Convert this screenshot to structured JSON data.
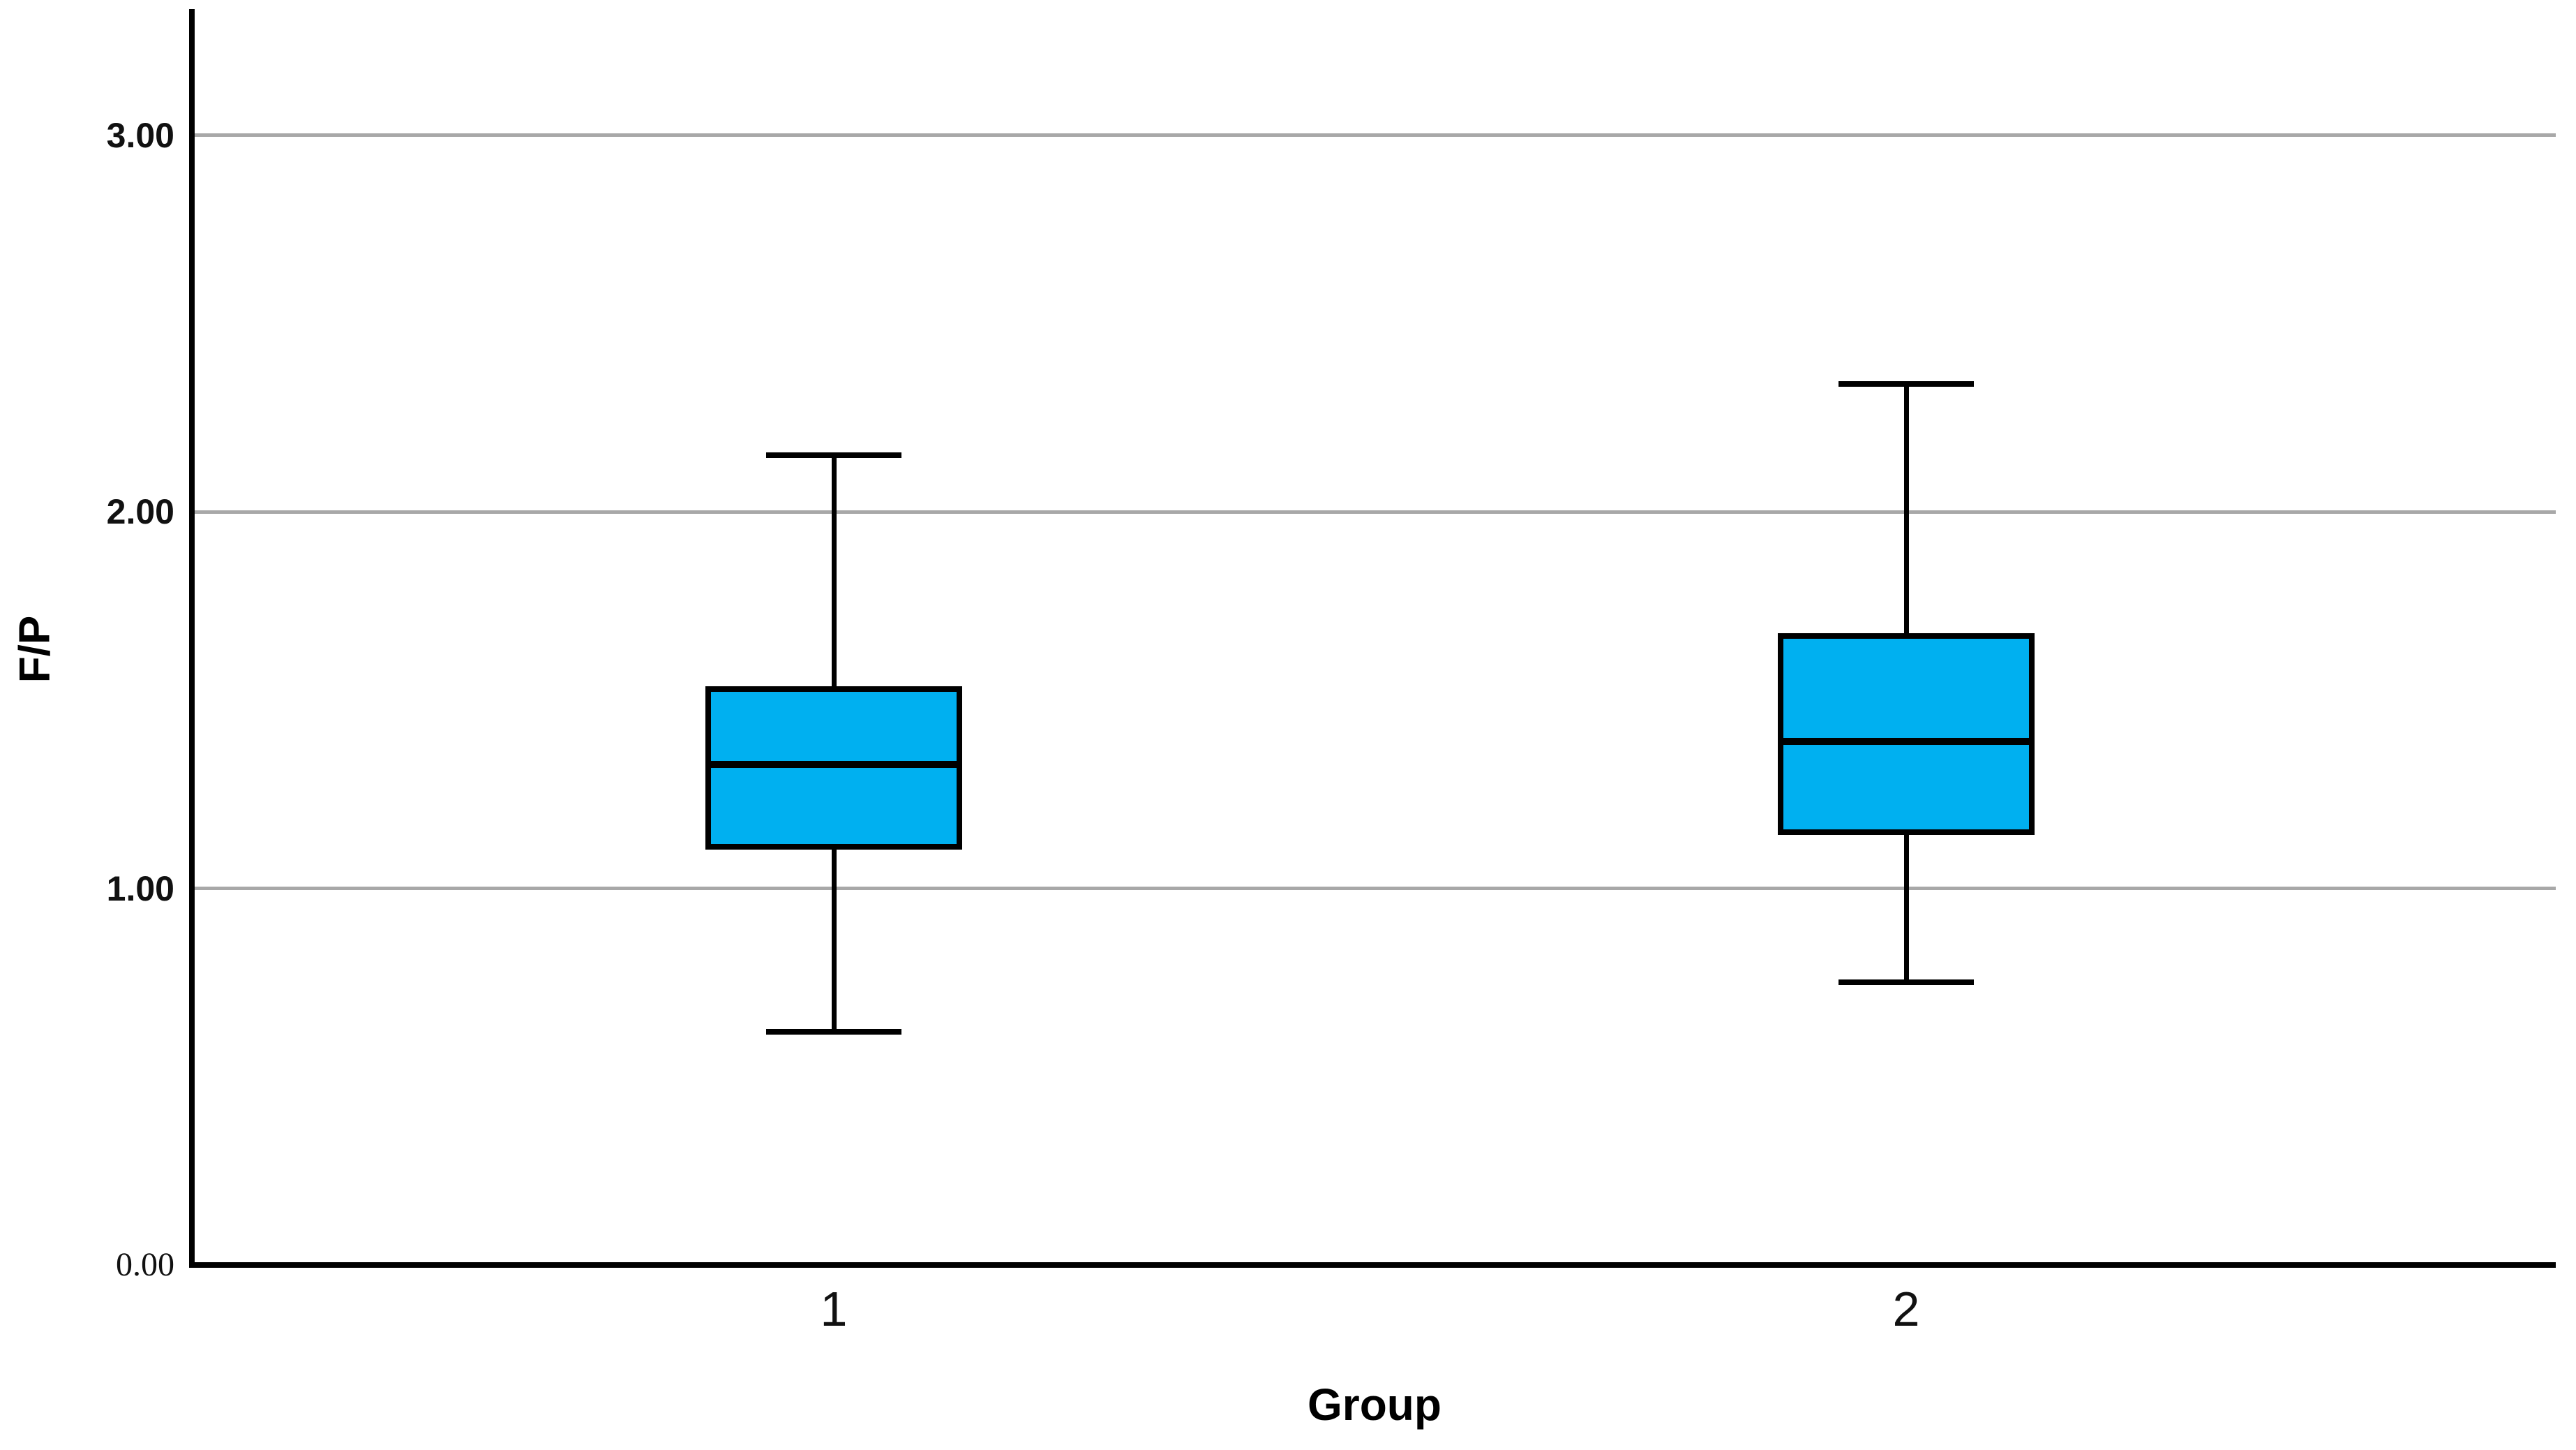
{
  "chart_data": {
    "type": "boxplot",
    "title": "",
    "xlabel": "Group",
    "ylabel": "F/P",
    "categories": [
      "1",
      "2"
    ],
    "y_tick_labels": [
      "0.00",
      "1.00",
      "2.00",
      "3.00"
    ],
    "y_tick_values": [
      0.0,
      1.0,
      2.0,
      3.0
    ],
    "gridlines_at": [
      1.0,
      2.0,
      3.0
    ],
    "ylim": [
      0,
      3.33
    ],
    "grid": true,
    "legend": null,
    "series": [
      {
        "category": "1",
        "whisker_low": 0.62,
        "q1": 1.11,
        "median": 1.33,
        "q3": 1.53,
        "whisker_high": 2.15
      },
      {
        "category": "2",
        "whisker_low": 0.75,
        "q1": 1.15,
        "median": 1.39,
        "q3": 1.67,
        "whisker_high": 2.34
      }
    ],
    "colors": {
      "box_fill": "#00B0F0",
      "box_border": "#000000",
      "median": "#000000",
      "whisker": "#000000",
      "gridline": "#A8A8A8",
      "axis": "#000000",
      "text": "#111111"
    }
  }
}
